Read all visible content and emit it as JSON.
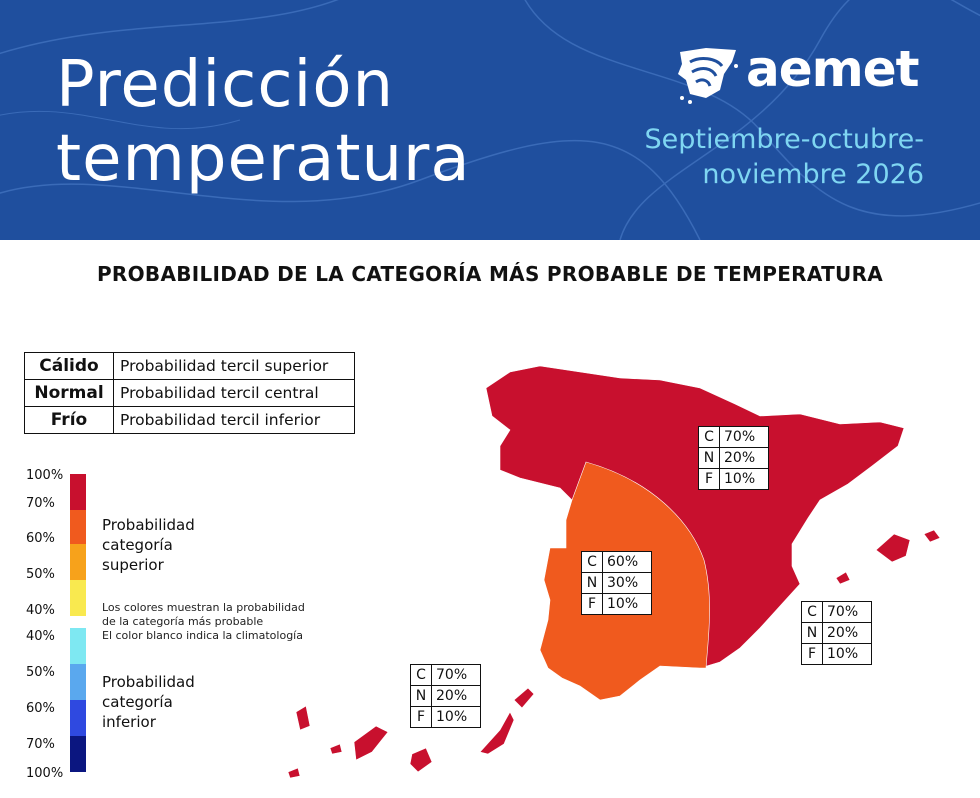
{
  "header": {
    "title_line1": "Predicción",
    "title_line2": "temperatura",
    "brand": "aemet",
    "period_line1": "Septiembre-octubre-",
    "period_line2": "noviembre 2026",
    "colors": {
      "background": "#1f4f9e",
      "period_text": "#7fd6f2"
    }
  },
  "subtitle": "PROBABILIDAD DE LA CATEGORÍA MÁS PROBABLE DE TEMPERATURA",
  "legend_table": [
    {
      "category": "Cálido",
      "description": "Probabilidad tercil superior"
    },
    {
      "category": "Normal",
      "description": "Probabilidad tercil central"
    },
    {
      "category": "Frío",
      "description": "Probabilidad tercil inferior"
    }
  ],
  "scale": {
    "ticks": [
      "100%",
      "70%",
      "60%",
      "50%",
      "40%",
      "40%",
      "50%",
      "60%",
      "70%",
      "100%"
    ],
    "upper_label": [
      "Probabilidad",
      "categoría",
      "superior"
    ],
    "lower_label": [
      "Probabilidad",
      "categoría",
      "inferior"
    ],
    "note": [
      "Los colores muestran la probabilidad",
      "de la categoría más probable",
      "El color blanco indica la climatología"
    ],
    "upper_colors": [
      "#c8102e",
      "#f05a1e",
      "#f7a21b",
      "#f9e94f"
    ],
    "lower_colors": [
      "#7ee8f2",
      "#5aa8ee",
      "#2f49e0",
      "#0b1680"
    ]
  },
  "regions": [
    {
      "name": "north-east",
      "color": "#c8102e",
      "C": "70%",
      "N": "20%",
      "F": "10%"
    },
    {
      "name": "south-west",
      "color": "#f05a1e",
      "C": "60%",
      "N": "30%",
      "F": "10%"
    },
    {
      "name": "balearic",
      "color": "#c8102e",
      "C": "70%",
      "N": "20%",
      "F": "10%"
    },
    {
      "name": "canary",
      "color": "#c8102e",
      "C": "70%",
      "N": "20%",
      "F": "10%"
    }
  ]
}
